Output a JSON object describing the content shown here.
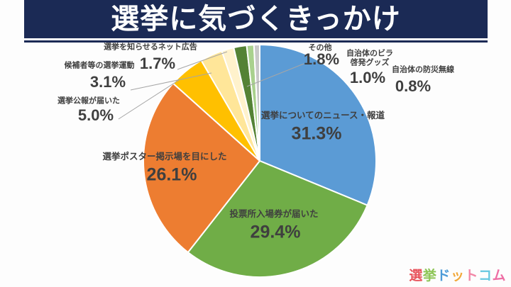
{
  "page": {
    "background": "#fdfdfd",
    "label_text_color": "#3f3f3f",
    "leader_line_color": "#a6a6a6"
  },
  "header": {
    "title": "選挙に気づくきっかけ",
    "bar_color": "#1b2a55",
    "text_color": "#ffffff"
  },
  "chart_data": {
    "type": "pie",
    "title": "選挙に気づくきっかけ",
    "unit": "%",
    "start_angle_deg": 0,
    "direction": "clockwise",
    "slices": [
      {
        "label": "選挙についてのニュース・報道",
        "value": 31.3,
        "pct": "31.3%",
        "color": "#5b9bd5",
        "label_placement": "inside"
      },
      {
        "label": "投票所入場券が届いた",
        "value": 29.4,
        "pct": "29.4%",
        "color": "#70ad47",
        "label_placement": "inside"
      },
      {
        "label": "選挙ポスター掲示場を目にした",
        "value": 26.1,
        "pct": "26.1%",
        "color": "#ed7d31",
        "label_placement": "inside"
      },
      {
        "label": "選挙公報が届いた",
        "value": 5.0,
        "pct": "5.0%",
        "color": "#ffc000",
        "label_placement": "outside"
      },
      {
        "label": "候補者等の選挙運動",
        "value": 3.1,
        "pct": "3.1%",
        "color": "#ffe699",
        "label_placement": "outside"
      },
      {
        "label": "選挙を知らせるネット広告",
        "value": 1.7,
        "pct": "1.7%",
        "color": "#fff2cc",
        "label_placement": "outside"
      },
      {
        "label": "その他",
        "value": 1.8,
        "pct": "1.8%",
        "color": "#548235",
        "label_placement": "outside"
      },
      {
        "label": "自治体のビラ\n啓発グッズ",
        "value": 1.0,
        "pct": "1.0%",
        "color": "#a9d18e",
        "label_placement": "outside"
      },
      {
        "label": "自治体の防災無線",
        "value": 0.8,
        "pct": "0.8%",
        "color": "#c9c9c9",
        "label_placement": "outside"
      }
    ]
  },
  "logo": {
    "text": "選挙ドットコム",
    "chars": [
      {
        "ch": "選",
        "color": "#e8545d"
      },
      {
        "ch": "挙",
        "color": "#8dc556"
      },
      {
        "ch": "ド",
        "color": "#4c9bd8"
      },
      {
        "ch": "ッ",
        "color": "#f2a93b"
      },
      {
        "ch": "ト",
        "color": "#f287a7"
      },
      {
        "ch": "コ",
        "color": "#67c8e0"
      },
      {
        "ch": "ム",
        "color": "#ee6fa5"
      }
    ]
  }
}
